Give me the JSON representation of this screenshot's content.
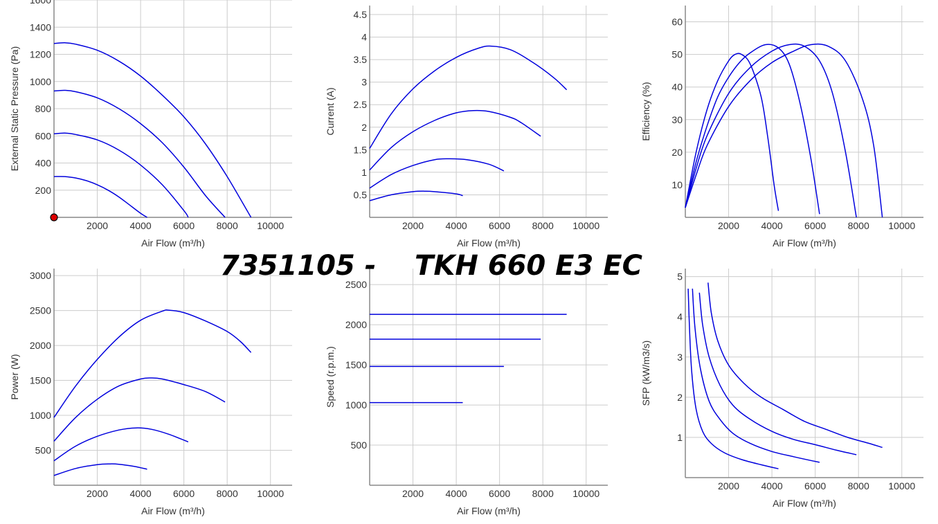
{
  "title": "7351105 -    TKH 660 E3 EC",
  "colors": {
    "curve": "#0000dd",
    "grid": "#cccccc",
    "axis": "#888888",
    "marker": "#dd0000"
  },
  "chart_data": [
    {
      "type": "line",
      "xlabel": "Air Flow (m³/h)",
      "ylabel": "External Static Pressure (Pa)",
      "xlim": [
        0,
        11000
      ],
      "ylim": [
        0,
        1600
      ],
      "xticks": [
        2000,
        4000,
        6000,
        8000,
        10000
      ],
      "yticks": [
        200,
        400,
        600,
        800,
        1000,
        1200,
        1400,
        1600
      ],
      "ytick_labels": [
        "200",
        "400",
        "600",
        "800",
        "1000",
        "1200",
        "1400",
        "1600"
      ],
      "marker": {
        "x": 0,
        "y": 0
      },
      "series": [
        {
          "x": [
            0,
            500,
            1000,
            1500,
            2000,
            2500,
            3000,
            3500,
            4000,
            4300
          ],
          "y": [
            300,
            300,
            290,
            270,
            240,
            200,
            150,
            90,
            30,
            0
          ]
        },
        {
          "x": [
            0,
            500,
            1000,
            2000,
            3000,
            4000,
            5000,
            6000,
            6200
          ],
          "y": [
            615,
            620,
            610,
            570,
            495,
            385,
            240,
            50,
            0
          ]
        },
        {
          "x": [
            0,
            500,
            1000,
            2000,
            3000,
            4000,
            5000,
            6000,
            7000,
            7900
          ],
          "y": [
            930,
            935,
            925,
            880,
            800,
            690,
            550,
            370,
            160,
            0
          ]
        },
        {
          "x": [
            0,
            500,
            1000,
            2000,
            3000,
            4000,
            5000,
            6000,
            7000,
            8000,
            9100
          ],
          "y": [
            1280,
            1285,
            1275,
            1230,
            1150,
            1040,
            900,
            740,
            540,
            300,
            0
          ]
        }
      ]
    },
    {
      "type": "line",
      "xlabel": "Air Flow (m³/h)",
      "ylabel": "Current (A)",
      "xlim": [
        0,
        11000
      ],
      "ylim": [
        0,
        4.7
      ],
      "xticks": [
        2000,
        4000,
        6000,
        8000,
        10000
      ],
      "yticks": [
        0.5,
        1,
        1.5,
        2,
        2.5,
        3,
        3.5,
        4,
        4.5
      ],
      "ytick_labels": [
        "0.5",
        "1",
        "1.5",
        "2",
        "2.5",
        "3",
        "3.5",
        "4",
        "4.5"
      ],
      "series": [
        {
          "x": [
            0,
            1000,
            2000,
            2600,
            3000,
            4000,
            4300
          ],
          "y": [
            0.37,
            0.5,
            0.57,
            0.58,
            0.57,
            0.52,
            0.48
          ]
        },
        {
          "x": [
            0,
            1000,
            2000,
            3000,
            3700,
            4500,
            5500,
            6200
          ],
          "y": [
            0.65,
            0.95,
            1.15,
            1.28,
            1.3,
            1.28,
            1.18,
            1.03
          ]
        },
        {
          "x": [
            0,
            1000,
            2000,
            3000,
            4000,
            4800,
            5500,
            6500,
            7000,
            7900
          ],
          "y": [
            1.05,
            1.55,
            1.9,
            2.15,
            2.32,
            2.37,
            2.35,
            2.22,
            2.1,
            1.8
          ]
        },
        {
          "x": [
            0,
            1000,
            2000,
            3000,
            4000,
            5000,
            5600,
            6500,
            7500,
            8500,
            9100
          ],
          "y": [
            1.53,
            2.3,
            2.85,
            3.25,
            3.55,
            3.75,
            3.8,
            3.72,
            3.45,
            3.1,
            2.83
          ]
        }
      ]
    },
    {
      "type": "line",
      "xlabel": "Air Flow (m³/h)",
      "ylabel": "Efficiency (%)",
      "xlim": [
        0,
        11000
      ],
      "ylim": [
        0,
        65
      ],
      "xticks": [
        2000,
        4000,
        6000,
        8000,
        10000
      ],
      "yticks": [
        10,
        20,
        30,
        40,
        50,
        60
      ],
      "ytick_labels": [
        "10",
        "20",
        "30",
        "40",
        "50",
        "60"
      ],
      "series": [
        {
          "x": [
            0,
            500,
            1000,
            1500,
            2000,
            2300,
            2600,
            3000,
            3500,
            3800,
            4100,
            4300
          ],
          "y": [
            3,
            20,
            33,
            42,
            48,
            50,
            50,
            47,
            37,
            25,
            10,
            2
          ]
        },
        {
          "x": [
            0,
            500,
            1000,
            1500,
            2000,
            2500,
            3000,
            3700,
            4300,
            4800,
            5300,
            5800,
            6200
          ],
          "y": [
            3,
            17,
            28,
            37,
            43,
            47.5,
            50.5,
            53,
            52,
            47,
            35,
            18,
            1
          ]
        },
        {
          "x": [
            0,
            500,
            1000,
            2000,
            3000,
            4000,
            4800,
            5500,
            6200,
            6800,
            7400,
            7900
          ],
          "y": [
            3,
            15,
            25,
            38,
            46,
            51,
            53,
            52.5,
            48,
            38,
            20,
            0
          ]
        },
        {
          "x": [
            0,
            500,
            1000,
            2000,
            3000,
            4000,
            5000,
            5800,
            6600,
            7400,
            8200,
            8700,
            9100
          ],
          "y": [
            3,
            13,
            22,
            34,
            42,
            47.5,
            51,
            53,
            52.5,
            48,
            36,
            22,
            0
          ]
        }
      ]
    },
    {
      "type": "line",
      "xlabel": "Air Flow (m³/h)",
      "ylabel": "Power (W)",
      "xlim": [
        0,
        11000
      ],
      "ylim": [
        0,
        3100
      ],
      "xticks": [
        2000,
        4000,
        6000,
        8000,
        10000
      ],
      "yticks": [
        500,
        1000,
        1500,
        2000,
        2500,
        3000
      ],
      "ytick_labels": [
        "500",
        "1000",
        "1500",
        "2000",
        "2500",
        "3000"
      ],
      "series": [
        {
          "x": [
            0,
            1000,
            2000,
            2600,
            3000,
            3700,
            4300
          ],
          "y": [
            140,
            240,
            295,
            305,
            300,
            270,
            230
          ]
        },
        {
          "x": [
            0,
            1000,
            2000,
            3000,
            3800,
            4500,
            5300,
            6200
          ],
          "y": [
            350,
            560,
            700,
            790,
            820,
            800,
            730,
            620
          ]
        },
        {
          "x": [
            0,
            1000,
            2000,
            3000,
            4000,
            4500,
            5000,
            6000,
            7000,
            7900
          ],
          "y": [
            630,
            970,
            1230,
            1420,
            1520,
            1535,
            1520,
            1440,
            1340,
            1190
          ]
        },
        {
          "x": [
            0,
            1000,
            2000,
            3000,
            4000,
            5000,
            5300,
            6000,
            7000,
            8000,
            8600,
            9100
          ],
          "y": [
            970,
            1420,
            1800,
            2120,
            2360,
            2490,
            2505,
            2470,
            2350,
            2200,
            2060,
            1900
          ]
        }
      ]
    },
    {
      "type": "line",
      "xlabel": "Air Flow (m³/h)",
      "ylabel": "Speed (r.p.m.)",
      "xlim": [
        0,
        11000
      ],
      "ylim": [
        0,
        2700
      ],
      "xticks": [
        2000,
        4000,
        6000,
        8000,
        10000
      ],
      "yticks": [
        500,
        1000,
        1500,
        2000,
        2500
      ],
      "ytick_labels": [
        "500",
        "1000",
        "1500",
        "2000",
        "2500"
      ],
      "series": [
        {
          "x": [
            0,
            4300
          ],
          "y": [
            1030,
            1030
          ]
        },
        {
          "x": [
            0,
            6200
          ],
          "y": [
            1480,
            1480
          ]
        },
        {
          "x": [
            0,
            7900
          ],
          "y": [
            1820,
            1820
          ]
        },
        {
          "x": [
            0,
            9100
          ],
          "y": [
            2130,
            2130
          ]
        }
      ]
    },
    {
      "type": "line",
      "xlabel": "Air Flow (m³/h)",
      "ylabel": "SFP (kW/m3/s)",
      "xlim": [
        0,
        11000
      ],
      "ylim": [
        0,
        5.2
      ],
      "xticks": [
        2000,
        4000,
        6000,
        8000,
        10000
      ],
      "yticks": [
        1,
        2,
        3,
        4,
        5
      ],
      "ytick_labels": [
        "1",
        "2",
        "3",
        "4",
        "5"
      ],
      "series": [
        {
          "x": [
            130,
            200,
            300,
            500,
            800,
            1200,
            1800,
            2600,
            3500,
            4300
          ],
          "y": [
            4.7,
            3.6,
            2.6,
            1.7,
            1.15,
            0.85,
            0.62,
            0.45,
            0.32,
            0.22
          ]
        },
        {
          "x": [
            330,
            450,
            700,
            1100,
            1600,
            2200,
            3000,
            4000,
            5000,
            6200
          ],
          "y": [
            4.7,
            3.7,
            2.7,
            1.9,
            1.45,
            1.1,
            0.85,
            0.65,
            0.52,
            0.38
          ]
        },
        {
          "x": [
            650,
            800,
            1100,
            1600,
            2200,
            3000,
            4000,
            5000,
            6000,
            7000,
            7900
          ],
          "y": [
            4.6,
            3.8,
            3.0,
            2.3,
            1.8,
            1.45,
            1.15,
            0.95,
            0.82,
            0.68,
            0.57
          ]
        },
        {
          "x": [
            1050,
            1200,
            1500,
            2000,
            2700,
            3500,
            4500,
            5500,
            6500,
            7500,
            8500,
            9100
          ],
          "y": [
            4.85,
            4.1,
            3.4,
            2.8,
            2.35,
            2.0,
            1.7,
            1.4,
            1.2,
            1.0,
            0.85,
            0.75
          ]
        }
      ]
    }
  ]
}
